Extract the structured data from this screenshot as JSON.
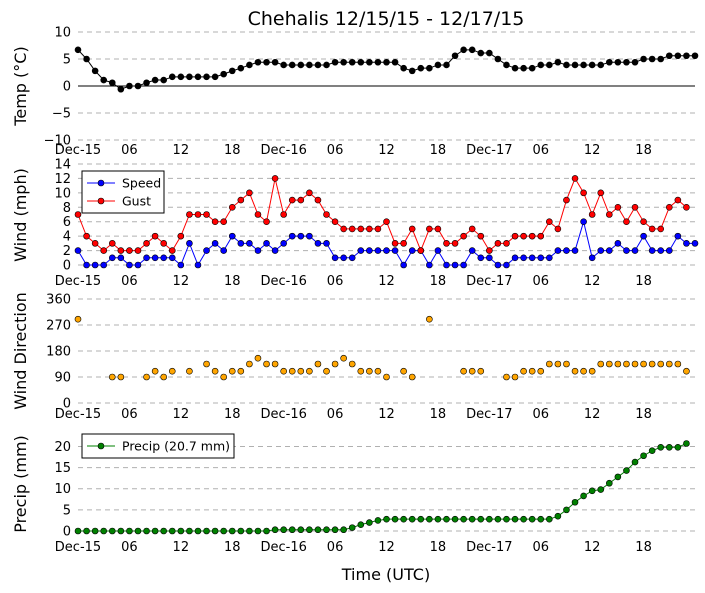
{
  "chart_data": {
    "title": "Chehalis 12/15/15 - 12/17/15",
    "xlabel": "Time (UTC)",
    "x_tick_labels": [
      "Dec-15",
      "06",
      "12",
      "18",
      "Dec-16",
      "06",
      "12",
      "18",
      "Dec-17",
      "06",
      "12",
      "18"
    ],
    "x_tick_hours": [
      0,
      6,
      12,
      18,
      24,
      30,
      36,
      42,
      48,
      54,
      60,
      66
    ],
    "panels": [
      {
        "type": "line",
        "ylabel": "Temp (°C)",
        "ylim": [
          -10,
          10
        ],
        "yticks": [
          10,
          5,
          0,
          -5,
          -10
        ],
        "ytick_labels": [
          "10",
          "5",
          "0",
          "−5",
          "−10"
        ],
        "zero_line": true,
        "grid": "horizontal dashed",
        "series": [
          {
            "color": "#000000",
            "values": [
              6.7,
              5.0,
              2.8,
              1.1,
              0.6,
              -0.6,
              0.0,
              0.0,
              0.6,
              1.1,
              1.1,
              1.7,
              1.7,
              1.7,
              1.7,
              1.7,
              1.7,
              2.2,
              2.8,
              3.3,
              3.9,
              4.4,
              4.4,
              4.4,
              3.9,
              3.9,
              3.9,
              3.9,
              3.9,
              3.9,
              4.4,
              4.4,
              4.4,
              4.4,
              4.4,
              4.4,
              4.4,
              4.4,
              3.3,
              2.8,
              3.3,
              3.3,
              3.9,
              3.9,
              5.6,
              6.7,
              6.7,
              6.1,
              6.1,
              5.0,
              3.9,
              3.3,
              3.3,
              3.3,
              3.9,
              3.9,
              4.4,
              3.9,
              3.9,
              3.9,
              3.9,
              3.9,
              4.4,
              4.4,
              4.4,
              4.4,
              5.0,
              5.0,
              5.0,
              5.6,
              5.6,
              5.6,
              5.6
            ]
          }
        ]
      },
      {
        "type": "line",
        "ylabel": "Wind (mph)",
        "ylim": [
          0,
          14
        ],
        "yticks": [
          0,
          2,
          4,
          6,
          8,
          10,
          12,
          14
        ],
        "ytick_labels": [
          "0",
          "2",
          "4",
          "6",
          "8",
          "10",
          "12",
          "14"
        ],
        "grid": "horizontal dashed",
        "legend": "upper-left",
        "series": [
          {
            "name": "Speed",
            "color": "#0000ff",
            "values": [
              2,
              0,
              0,
              0,
              1,
              1,
              0,
              0,
              1,
              1,
              1,
              1,
              0,
              3,
              0,
              2,
              3,
              2,
              4,
              3,
              3,
              2,
              3,
              2,
              3,
              4,
              4,
              4,
              3,
              3,
              1,
              1,
              1,
              2,
              2,
              2,
              2,
              2,
              0,
              2,
              2,
              0,
              2,
              0,
              0,
              0,
              2,
              1,
              1,
              0,
              0,
              1,
              1,
              1,
              1,
              1,
              2,
              2,
              2,
              6,
              1,
              2,
              2,
              3,
              2,
              2,
              4,
              2,
              2,
              2,
              4,
              3,
              3
            ]
          },
          {
            "name": "Gust",
            "color": "#ff0000",
            "values": [
              7,
              4,
              3,
              2,
              3,
              2,
              2,
              2,
              3,
              4,
              3,
              2,
              4,
              7,
              7,
              7,
              6,
              6,
              8,
              9,
              10,
              7,
              6,
              12,
              7,
              9,
              9,
              10,
              9,
              7,
              6,
              5,
              5,
              5,
              5,
              5,
              6,
              3,
              3,
              5,
              2,
              5,
              5,
              3,
              3,
              4,
              5,
              4,
              2,
              3,
              3,
              4,
              4,
              4,
              4,
              6,
              5,
              9,
              12,
              10,
              7,
              10,
              7,
              8,
              6,
              8,
              6,
              5,
              5,
              8,
              9,
              8
            ]
          }
        ]
      },
      {
        "type": "scatter",
        "ylabel": "Wind Direction",
        "ylim": [
          0,
          360
        ],
        "yticks": [
          0,
          90,
          180,
          270,
          360
        ],
        "ytick_labels": [
          "0",
          "90",
          "180",
          "270",
          "360"
        ],
        "grid": "horizontal dashed",
        "series": [
          {
            "color": "#ffa500",
            "points": [
              [
                0,
                290
              ],
              [
                4,
                90
              ],
              [
                5,
                90
              ],
              [
                8,
                90
              ],
              [
                9,
                110
              ],
              [
                10,
                90
              ],
              [
                11,
                110
              ],
              [
                13,
                110
              ],
              [
                15,
                135
              ],
              [
                16,
                110
              ],
              [
                17,
                90
              ],
              [
                18,
                110
              ],
              [
                19,
                110
              ],
              [
                20,
                135
              ],
              [
                21,
                155
              ],
              [
                22,
                135
              ],
              [
                23,
                135
              ],
              [
                24,
                110
              ],
              [
                25,
                110
              ],
              [
                26,
                110
              ],
              [
                27,
                110
              ],
              [
                28,
                135
              ],
              [
                29,
                110
              ],
              [
                30,
                135
              ],
              [
                31,
                155
              ],
              [
                32,
                135
              ],
              [
                33,
                110
              ],
              [
                34,
                110
              ],
              [
                35,
                110
              ],
              [
                36,
                90
              ],
              [
                38,
                110
              ],
              [
                39,
                90
              ],
              [
                41,
                290
              ],
              [
                45,
                110
              ],
              [
                46,
                110
              ],
              [
                47,
                110
              ],
              [
                50,
                90
              ],
              [
                51,
                90
              ],
              [
                52,
                110
              ],
              [
                53,
                110
              ],
              [
                54,
                110
              ],
              [
                55,
                135
              ],
              [
                56,
                135
              ],
              [
                57,
                135
              ],
              [
                58,
                110
              ],
              [
                59,
                110
              ],
              [
                60,
                110
              ],
              [
                61,
                135
              ],
              [
                62,
                135
              ],
              [
                63,
                135
              ],
              [
                64,
                135
              ],
              [
                65,
                135
              ],
              [
                66,
                135
              ],
              [
                67,
                135
              ],
              [
                68,
                135
              ],
              [
                69,
                135
              ],
              [
                70,
                135
              ],
              [
                71,
                110
              ]
            ]
          }
        ]
      },
      {
        "type": "line",
        "ylabel": "Precip (mm)",
        "ylim": [
          0,
          22
        ],
        "yticks": [
          0,
          5,
          10,
          15,
          20
        ],
        "ytick_labels": [
          "0",
          "5",
          "10",
          "15",
          "20"
        ],
        "grid": "horizontal dashed",
        "legend": "upper-left",
        "series": [
          {
            "name": "Precip (20.7 mm)",
            "color": "#008000",
            "values": [
              0,
              0,
              0,
              0,
              0,
              0,
              0,
              0,
              0,
              0,
              0,
              0,
              0,
              0,
              0,
              0,
              0,
              0,
              0,
              0,
              0,
              0,
              0,
              0.3,
              0.3,
              0.3,
              0.3,
              0.3,
              0.3,
              0.3,
              0.3,
              0.3,
              0.8,
              1.5,
              2.0,
              2.5,
              2.8,
              2.8,
              2.8,
              2.8,
              2.8,
              2.8,
              2.8,
              2.8,
              2.8,
              2.8,
              2.8,
              2.8,
              2.8,
              2.8,
              2.8,
              2.8,
              2.8,
              2.8,
              2.8,
              2.8,
              3.5,
              5.0,
              6.8,
              8.3,
              9.5,
              9.8,
              11.3,
              12.8,
              14.3,
              16.3,
              17.8,
              19.0,
              19.8,
              19.8,
              19.8,
              20.7
            ]
          }
        ]
      }
    ]
  }
}
